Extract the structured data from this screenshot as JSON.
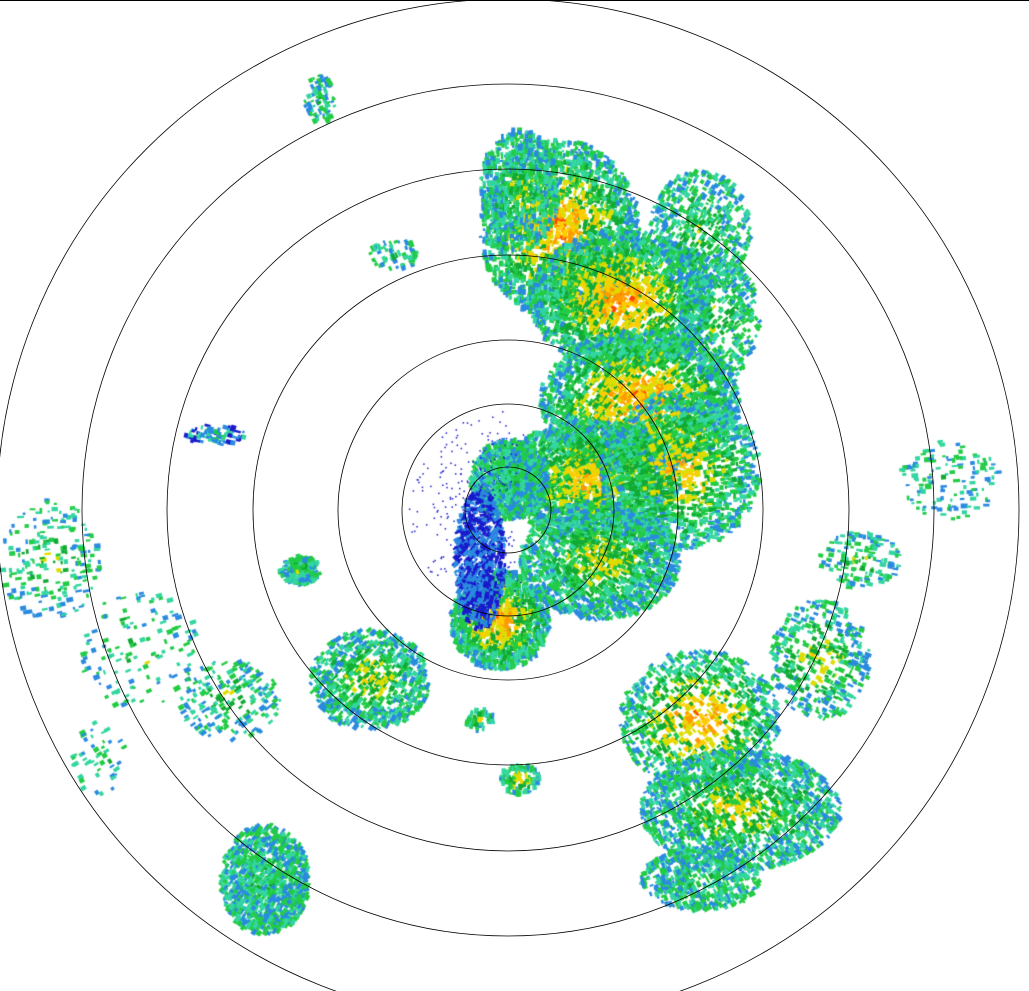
{
  "display": {
    "type": "radar-ppi",
    "range_ring_count": 7,
    "ring_color": "#000000",
    "background": "#ffffff"
  },
  "reflectivity_palette": [
    "#1a1acc",
    "#2a8ae0",
    "#33d6a0",
    "#22cc44",
    "#11aa33",
    "#dddd00",
    "#ffcc00",
    "#ff9900",
    "#ff4400",
    "#ee0000"
  ]
}
